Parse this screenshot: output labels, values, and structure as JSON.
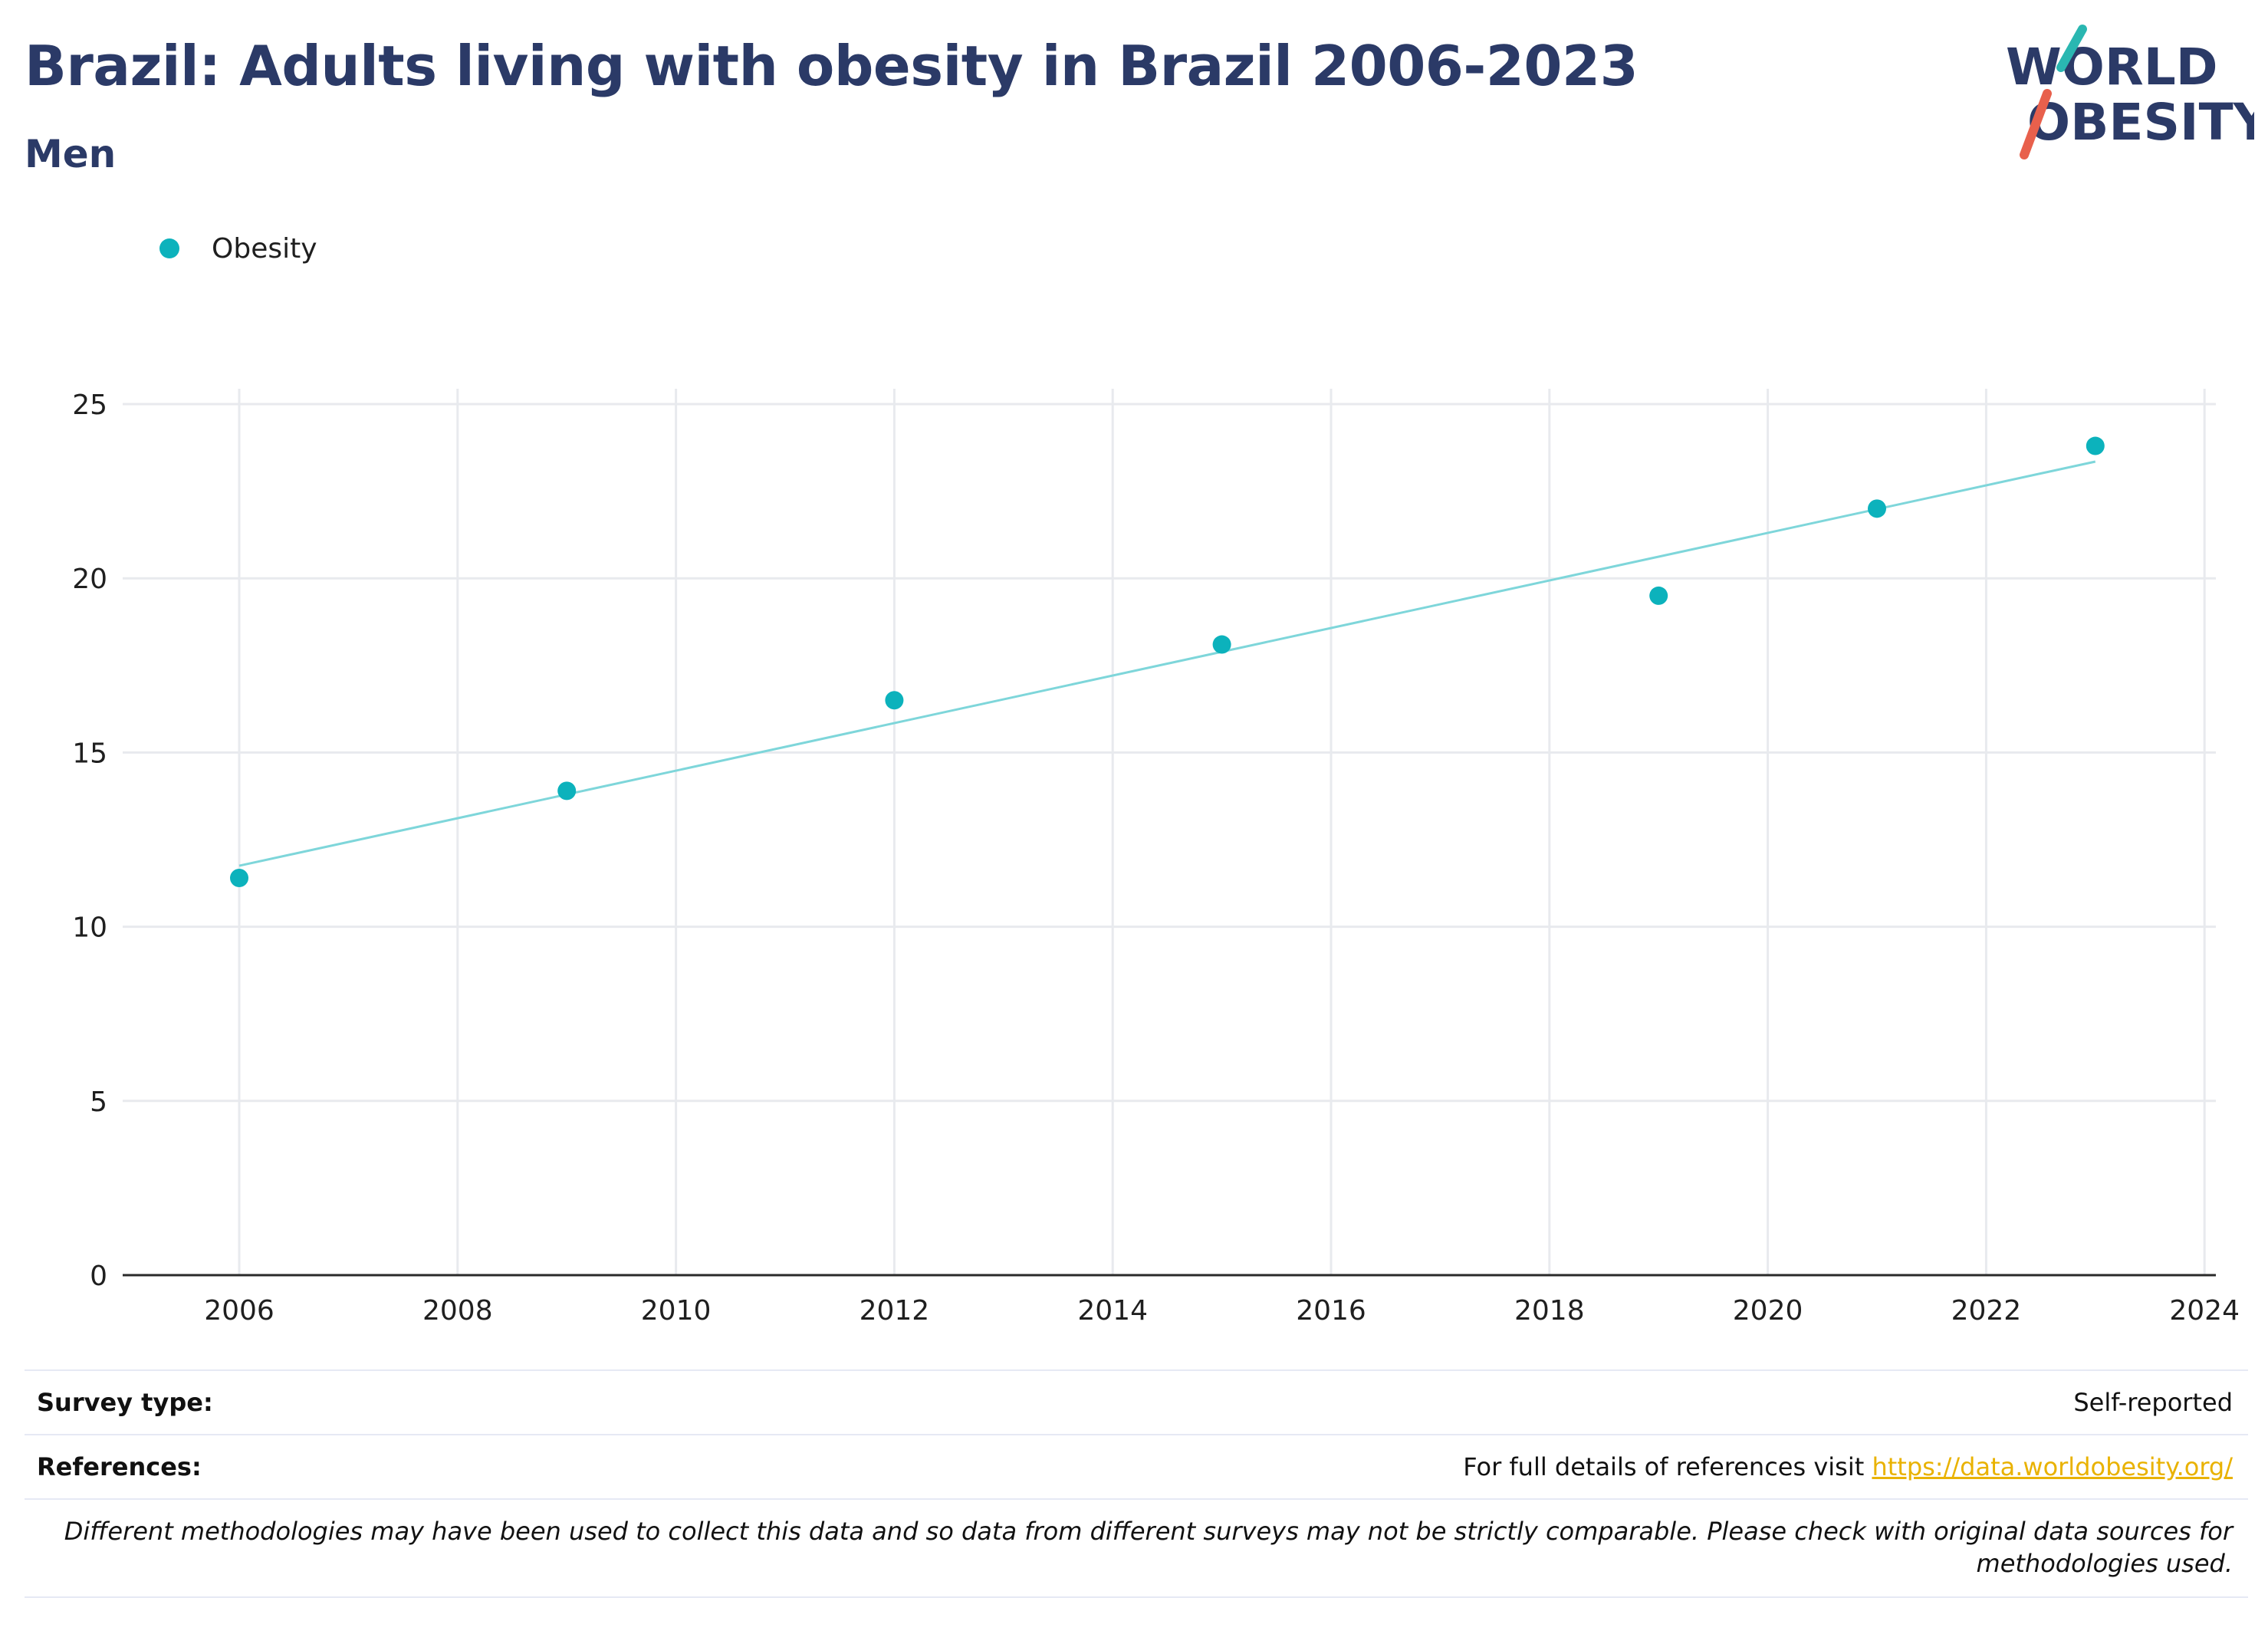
{
  "header": {
    "title": "Brazil: Adults living with obesity in Brazil 2006-2023",
    "subtitle": "Men"
  },
  "logo": {
    "line1": "WORLD",
    "line2": "OBESITY",
    "accent_teal": "#2ab7b1",
    "accent_red": "#e8604c",
    "text_color": "#2b3a67"
  },
  "legend": {
    "label": "Obesity",
    "marker_color": "#0cb2bc"
  },
  "chart_data": {
    "type": "scatter",
    "title": "Brazil: Adults living with obesity in Brazil 2006-2023",
    "subtitle": "Men",
    "xlabel": "",
    "ylabel": "",
    "xlim": [
      2005,
      2024
    ],
    "ylim": [
      0,
      25
    ],
    "xticks": [
      2006,
      2008,
      2010,
      2012,
      2014,
      2016,
      2018,
      2020,
      2022,
      2024
    ],
    "yticks": [
      0,
      5,
      10,
      15,
      20,
      25
    ],
    "grid": true,
    "legend_position": "top-left",
    "series": [
      {
        "name": "Obesity",
        "color": "#0cb2bc",
        "x": [
          2006,
          2009,
          2012,
          2015,
          2019,
          2021,
          2023
        ],
        "y": [
          11.4,
          13.9,
          16.5,
          18.1,
          19.5,
          22.0,
          23.8
        ]
      }
    ],
    "trendline": {
      "color": "#7ed6da",
      "x": [
        2006,
        2023
      ],
      "y": [
        11.75,
        23.35
      ]
    }
  },
  "footer": {
    "survey_label": "Survey type:",
    "survey_value": "Self-reported",
    "references_label": "References:",
    "references_text": "For full details of references visit ",
    "references_link": "https://data.worldobesity.org/",
    "note": "Different methodologies may have been used to collect this data and so data from different surveys may not be strictly comparable. Please check with original data sources for methodologies used."
  }
}
